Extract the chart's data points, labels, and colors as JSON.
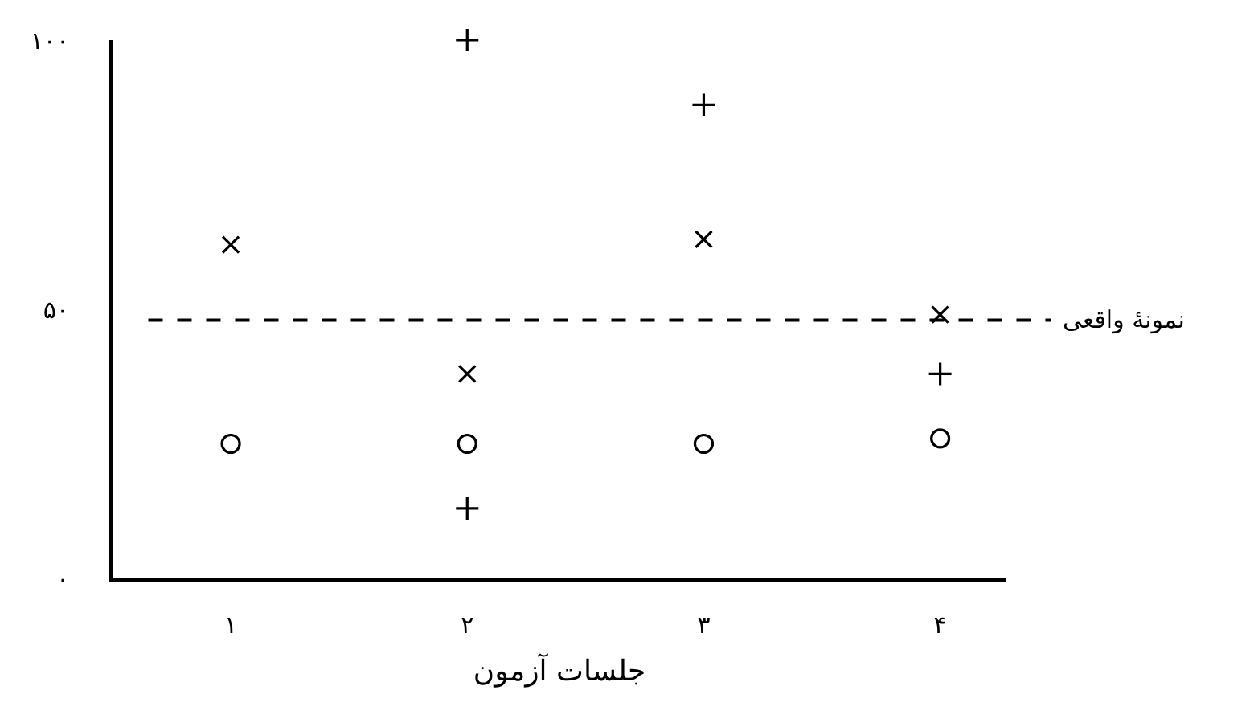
{
  "chart_data": {
    "type": "scatter",
    "xlabel": "جلسات آزمون",
    "categories": [
      "۱",
      "۲",
      "۳",
      "۴"
    ],
    "ylim": [
      0,
      100
    ],
    "yticks": [
      {
        "value": 0,
        "label": "٠"
      },
      {
        "value": 50,
        "label": "۵٠"
      },
      {
        "value": 100,
        "label": "١٠٠"
      }
    ],
    "series": [
      {
        "color": "#000000",
        "marker": "x",
        "values": [
          62,
          38,
          63,
          49
        ]
      },
      {
        "color": "#000000",
        "marker": "cross",
        "x": [
          "۲",
          "۲",
          "۳",
          "۴"
        ],
        "values": [
          100,
          13,
          88,
          38
        ]
      },
      {
        "color": "#000000",
        "marker": "circle",
        "values": [
          25,
          25,
          25,
          26
        ]
      }
    ],
    "ref_lines": [
      {
        "axis": "y",
        "value": 48,
        "label": "نمونهٔ واقعی",
        "line_style": "dashed",
        "color": "#000000"
      }
    ]
  }
}
